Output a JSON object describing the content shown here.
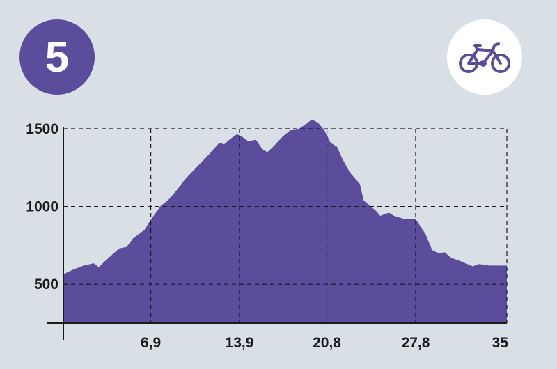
{
  "badge": {
    "number": "5"
  },
  "icons": {
    "activity": "bicycle-icon"
  },
  "colors": {
    "accent": "#5b4d9c",
    "background": "#d8dfe5",
    "axis": "#1a1a1a"
  },
  "chart_data": {
    "type": "area",
    "title": "",
    "xlabel": "",
    "ylabel": "",
    "xlim": [
      0,
      35
    ],
    "ylim": [
      250,
      1500
    ],
    "grid": true,
    "x_ticks": [
      {
        "value": 6.9,
        "label": "6,9"
      },
      {
        "value": 13.9,
        "label": "13,9"
      },
      {
        "value": 20.8,
        "label": "20,8"
      },
      {
        "value": 27.8,
        "label": "27,8"
      },
      {
        "value": 35,
        "label": "35"
      }
    ],
    "y_ticks": [
      {
        "value": 500,
        "label": "500"
      },
      {
        "value": 1000,
        "label": "1000"
      },
      {
        "value": 1500,
        "label": "1500"
      }
    ],
    "x": [
      0,
      0.8,
      1.6,
      2.4,
      2.8,
      3.3,
      4.4,
      5.0,
      5.5,
      6.4,
      6.9,
      7.7,
      8.3,
      8.9,
      9.6,
      10.6,
      11.6,
      12.3,
      12.7,
      13.1,
      13.7,
      14.1,
      14.6,
      15.2,
      15.7,
      16.1,
      16.5,
      17.3,
      17.9,
      18.5,
      19.3,
      19.6,
      20.1,
      20.6,
      21.1,
      21.6,
      22.0,
      22.6,
      23.4,
      23.7,
      24.7,
      25.0,
      25.7,
      26.1,
      26.9,
      27.8,
      28.6,
      29.1,
      29.6,
      30.1,
      30.6,
      31.3,
      32.3,
      32.8,
      33.6,
      35.0
    ],
    "values": [
      565,
      595,
      620,
      635,
      610,
      650,
      730,
      740,
      795,
      850,
      915,
      1005,
      1045,
      1100,
      1175,
      1260,
      1345,
      1410,
      1400,
      1430,
      1465,
      1450,
      1420,
      1430,
      1370,
      1350,
      1380,
      1450,
      1490,
      1495,
      1540,
      1560,
      1540,
      1490,
      1410,
      1385,
      1310,
      1220,
      1145,
      1040,
      970,
      940,
      960,
      940,
      920,
      920,
      820,
      720,
      700,
      705,
      670,
      650,
      615,
      630,
      620,
      620
    ]
  }
}
